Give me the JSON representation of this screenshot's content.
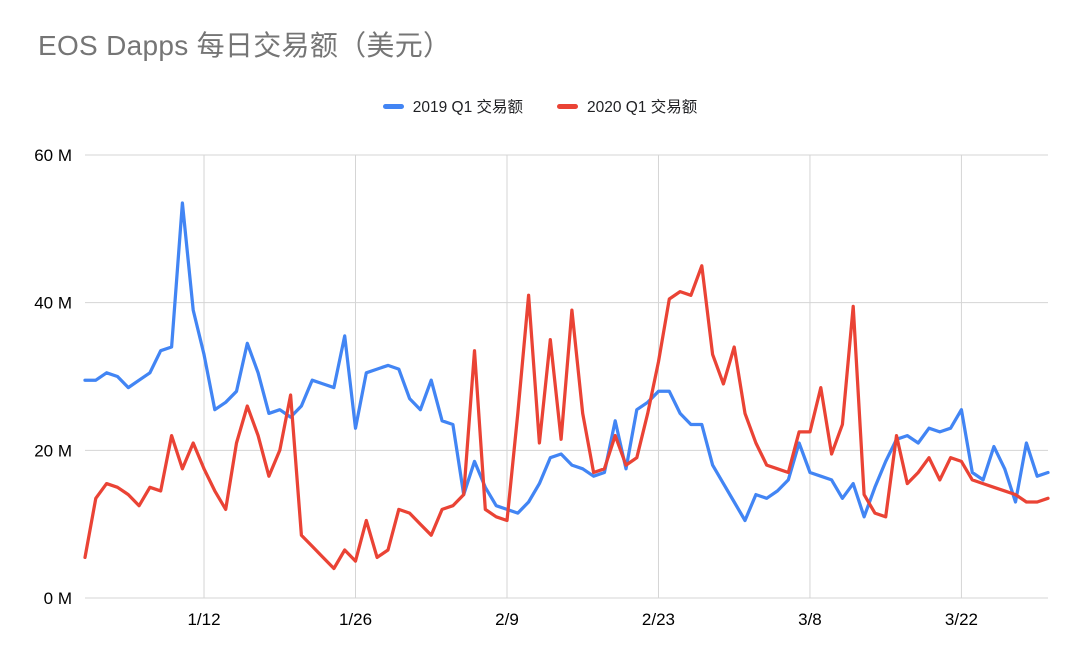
{
  "chart_data": {
    "type": "line",
    "title": "EOS Dapps 每日交易额（美元）",
    "xlabel": "",
    "ylabel": "",
    "y_unit": "M (million USD)",
    "ylim": [
      0,
      60
    ],
    "y_ticks": [
      0,
      20,
      40,
      60
    ],
    "y_tick_labels": [
      "0 M",
      "20 M",
      "40 M",
      "60 M"
    ],
    "x_tick_labels": [
      "1/12",
      "1/26",
      "2/9",
      "2/23",
      "3/8",
      "3/22"
    ],
    "x_tick_indices": [
      11,
      25,
      39,
      53,
      67,
      81
    ],
    "x_unit": "day of Q1 (daily values, Jan 1 - Mar 31)",
    "grid": true,
    "legend_position": "top",
    "series": [
      {
        "name": "2019 Q1 交易额",
        "color": "#4285f4",
        "values": [
          29.5,
          29.5,
          30.5,
          30,
          28.5,
          29.5,
          30.5,
          33.5,
          34,
          53.5,
          39,
          33,
          25.5,
          26.5,
          28,
          34.5,
          30.5,
          25,
          25.5,
          24.5,
          26,
          29.5,
          29,
          28.5,
          35.5,
          23,
          30.5,
          31,
          31.5,
          31,
          27,
          25.5,
          29.5,
          24,
          23.5,
          14,
          18.5,
          15,
          12.5,
          12,
          11.5,
          13,
          15.5,
          19,
          19.5,
          18,
          17.5,
          16.5,
          17,
          24,
          17.5,
          25.5,
          26.5,
          28,
          28,
          25,
          23.5,
          23.5,
          18,
          15.5,
          13,
          10.5,
          14,
          13.5,
          14.5,
          16,
          21,
          17,
          16.5,
          16,
          13.5,
          15.5,
          11,
          15,
          18.5,
          21.5,
          22,
          21,
          23,
          22.5,
          23,
          25.5,
          17,
          16,
          20.5,
          17.5,
          13,
          21,
          16.5,
          17
        ]
      },
      {
        "name": "2020 Q1 交易额",
        "color": "#ea4335",
        "values": [
          5.5,
          13.5,
          15.5,
          15,
          14,
          12.5,
          15,
          14.5,
          22,
          17.5,
          21,
          17.5,
          14.5,
          12,
          21,
          26,
          22,
          16.5,
          20,
          27.5,
          8.5,
          7,
          5.5,
          4,
          6.5,
          5,
          10.5,
          5.5,
          6.5,
          12,
          11.5,
          10,
          8.5,
          12,
          12.5,
          14,
          33.5,
          12,
          11,
          10.5,
          25,
          41,
          21,
          35,
          21.5,
          39,
          25,
          17,
          17.5,
          22,
          18,
          19,
          25,
          32,
          40.5,
          41.5,
          41,
          45,
          33,
          29,
          34,
          25,
          21,
          18,
          17.5,
          17,
          22.5,
          22.5,
          28.5,
          19.5,
          23.5,
          39.5,
          14,
          11.5,
          11,
          22,
          15.5,
          17,
          19,
          16,
          19,
          18.5,
          16,
          15.5,
          15,
          14.5,
          14,
          13,
          13,
          13.5
        ]
      }
    ]
  }
}
